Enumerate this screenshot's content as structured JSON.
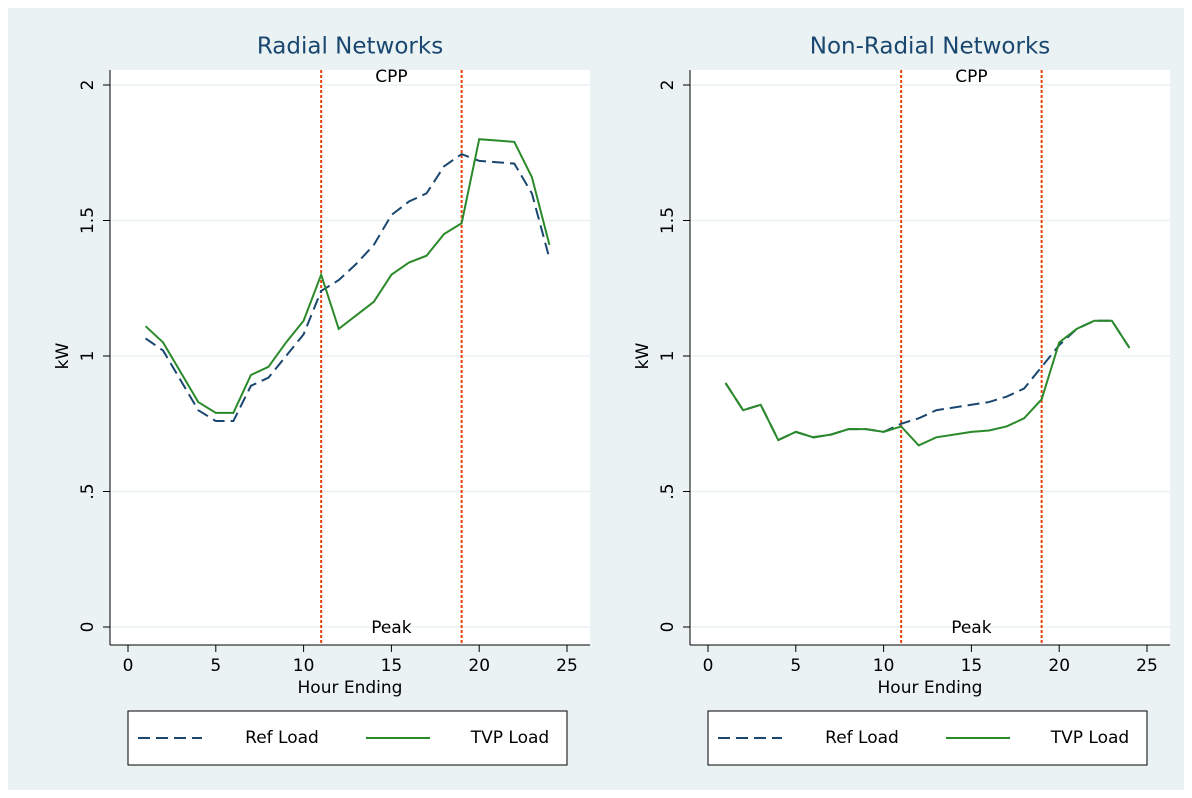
{
  "chart_data": [
    {
      "type": "line",
      "title": "Radial Networks",
      "xlabel": "Hour Ending",
      "ylabel": "kW",
      "x": [
        1,
        2,
        3,
        4,
        5,
        6,
        7,
        8,
        9,
        10,
        11,
        12,
        13,
        14,
        15,
        16,
        17,
        18,
        19,
        20,
        21,
        22,
        23,
        24
      ],
      "series": [
        {
          "name": "Ref Load",
          "color": "#1a476f",
          "dash": true,
          "values": [
            1.065,
            1.02,
            0.91,
            0.8,
            0.76,
            0.76,
            0.89,
            0.92,
            1.0,
            1.08,
            1.24,
            1.28,
            1.34,
            1.41,
            1.52,
            1.57,
            1.6,
            1.7,
            1.745,
            1.72,
            1.715,
            1.71,
            1.6,
            1.36
          ]
        },
        {
          "name": "TVP Load",
          "color": "#2a8a2a",
          "dash": false,
          "values": [
            1.11,
            1.05,
            0.94,
            0.83,
            0.79,
            0.79,
            0.93,
            0.96,
            1.05,
            1.13,
            1.3,
            1.1,
            1.15,
            1.2,
            1.3,
            1.345,
            1.37,
            1.45,
            1.49,
            1.8,
            1.795,
            1.79,
            1.66,
            1.41
          ]
        }
      ],
      "vlines": [
        11,
        19
      ],
      "vline_color": "#e8420b",
      "annotations": [
        {
          "text": "CPP",
          "color": "#ff0000"
        },
        {
          "text": "Peak",
          "color": "#f28b1e"
        }
      ],
      "xlim": [
        0,
        25
      ],
      "xticks": [
        0,
        5,
        10,
        15,
        20,
        25
      ],
      "ylim": [
        0,
        2
      ],
      "yticks": [
        0,
        {
          "value": 0.5,
          "label": ".5"
        },
        1,
        1.5,
        2
      ],
      "grid": true
    },
    {
      "type": "line",
      "title": "Non-Radial Networks",
      "xlabel": "Hour Ending",
      "ylabel": "kW",
      "x": [
        1,
        2,
        3,
        4,
        5,
        6,
        7,
        8,
        9,
        10,
        11,
        12,
        13,
        14,
        15,
        16,
        17,
        18,
        19,
        20,
        21,
        22,
        23,
        24
      ],
      "series": [
        {
          "name": "Ref Load",
          "color": "#1a476f",
          "dash": true,
          "values": [
            0.9,
            0.8,
            0.82,
            0.69,
            0.72,
            0.7,
            0.71,
            0.73,
            0.73,
            0.72,
            0.75,
            0.77,
            0.8,
            0.81,
            0.82,
            0.83,
            0.85,
            0.88,
            0.96,
            1.04,
            1.1,
            1.13,
            1.13,
            1.03
          ]
        },
        {
          "name": "TVP Load",
          "color": "#2a8a2a",
          "dash": false,
          "values": [
            0.9,
            0.8,
            0.82,
            0.69,
            0.72,
            0.7,
            0.71,
            0.73,
            0.73,
            0.72,
            0.74,
            0.67,
            0.7,
            0.71,
            0.72,
            0.725,
            0.74,
            0.77,
            0.84,
            1.05,
            1.1,
            1.13,
            1.13,
            1.03
          ]
        }
      ],
      "vlines": [
        11,
        19
      ],
      "vline_color": "#e8420b",
      "annotations": [
        {
          "text": "CPP",
          "color": "#ff0000"
        },
        {
          "text": "Peak",
          "color": "#f28b1e"
        }
      ],
      "xlim": [
        0,
        25
      ],
      "xticks": [
        0,
        5,
        10,
        15,
        20,
        25
      ],
      "ylim": [
        0,
        2
      ],
      "yticks": [
        0,
        {
          "value": 0.5,
          "label": ".5"
        },
        1,
        1.5,
        2
      ],
      "grid": true
    }
  ]
}
